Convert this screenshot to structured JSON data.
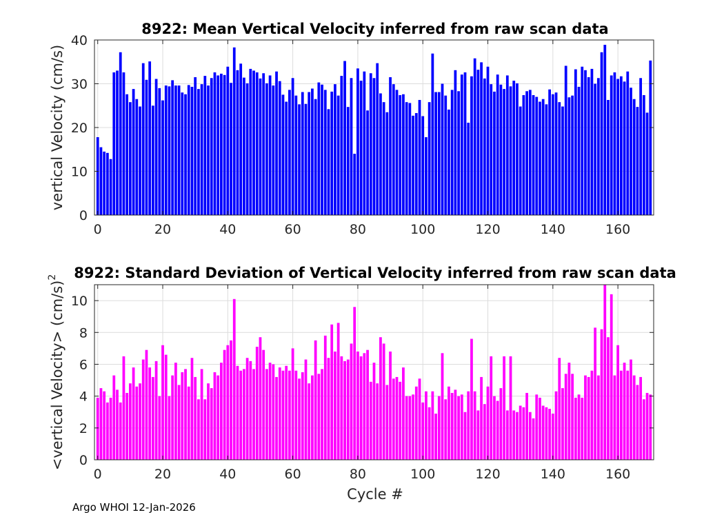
{
  "chart_data": [
    {
      "type": "bar",
      "title": "8922: Mean Vertical Velocity inferred from raw scan data",
      "xlabel": "",
      "ylabel": "vertical Velocity (cm/s)",
      "xlim": [
        -1,
        171
      ],
      "ylim": [
        0,
        40
      ],
      "xticks": [
        0,
        20,
        40,
        60,
        80,
        100,
        120,
        140,
        160
      ],
      "yticks": [
        0,
        10,
        20,
        30,
        40
      ],
      "bar_color": "#0000ff",
      "grid": true,
      "x_start": 0,
      "values": [
        17.8,
        15.5,
        14.5,
        14.2,
        12.8,
        32.6,
        33.0,
        37.2,
        32.6,
        27.6,
        25.8,
        28.8,
        26.5,
        24.8,
        34.7,
        30.9,
        35.1,
        25.0,
        31.1,
        29.0,
        26.2,
        29.6,
        29.4,
        30.8,
        29.6,
        29.6,
        28.0,
        27.6,
        29.7,
        29.3,
        31.5,
        28.8,
        29.9,
        31.8,
        29.6,
        31.3,
        32.6,
        31.9,
        32.3,
        32.0,
        33.9,
        30.2,
        38.3,
        33.1,
        34.6,
        31.4,
        30.1,
        33.4,
        33.0,
        32.6,
        31.2,
        32.4,
        30.1,
        31.9,
        29.6,
        32.8,
        30.6,
        27.5,
        25.9,
        28.6,
        31.3,
        27.3,
        25.3,
        28.1,
        25.4,
        28.1,
        28.9,
        26.5,
        30.3,
        29.8,
        28.6,
        24.2,
        28.2,
        29.9,
        27.3,
        31.8,
        35.2,
        24.7,
        31.3,
        14.0,
        33.5,
        30.7,
        32.8,
        23.9,
        32.4,
        31.3,
        34.7,
        27.8,
        25.8,
        23.5,
        31.5,
        29.9,
        28.6,
        27.4,
        27.6,
        25.8,
        25.6,
        22.7,
        23.3,
        26.3,
        22.6,
        17.8,
        25.8,
        36.9,
        28.1,
        28.1,
        30.0,
        27.3,
        24.1,
        28.6,
        33.1,
        28.3,
        32.1,
        32.6,
        21.1,
        31.7,
        35.8,
        33.2,
        34.9,
        31.2,
        33.9,
        29.9,
        28.2,
        32.1,
        29.8,
        28.8,
        31.9,
        29.4,
        30.7,
        30.1,
        24.8,
        27.4,
        28.3,
        28.6,
        27.4,
        27.0,
        25.9,
        26.5,
        25.3,
        28.7,
        27.6,
        28.0,
        25.8,
        24.8,
        34.1,
        26.9,
        27.3,
        33.3,
        29.3,
        33.9,
        33.1,
        31.5,
        33.4,
        30.0,
        31.3,
        37.2,
        38.9,
        26.3,
        31.9,
        32.6,
        31.1,
        31.7,
        30.5,
        32.8,
        29.1,
        26.5,
        24.7,
        31.3,
        27.4,
        23.4,
        35.3
      ]
    },
    {
      "type": "bar",
      "title": "8922: Standard Deviation of Vertical Velocity inferred from raw scan data",
      "xlabel": "Cycle #",
      "ylabel": "<vertical Velocity> (cm/s)",
      "ylabel_superscript": "2",
      "xlim": [
        -1,
        171
      ],
      "ylim": [
        0,
        11
      ],
      "xticks": [
        0,
        20,
        40,
        60,
        80,
        100,
        120,
        140,
        160
      ],
      "yticks": [
        0,
        2,
        4,
        6,
        8,
        10
      ],
      "bar_color": "#ff00ff",
      "grid": true,
      "x_start": 0,
      "values": [
        3.9,
        4.5,
        4.3,
        3.6,
        3.9,
        5.3,
        4.4,
        3.6,
        6.5,
        4.2,
        4.8,
        5.8,
        4.6,
        4.8,
        6.3,
        6.9,
        5.8,
        5.2,
        6.2,
        4.0,
        7.2,
        6.6,
        4.0,
        5.3,
        6.1,
        4.7,
        5.5,
        5.7,
        4.6,
        6.4,
        5.2,
        3.8,
        5.7,
        3.8,
        4.8,
        4.5,
        5.5,
        5.3,
        6.1,
        6.9,
        7.2,
        7.5,
        10.1,
        5.9,
        5.6,
        5.7,
        6.4,
        6.2,
        5.7,
        7.1,
        7.7,
        6.9,
        5.7,
        6.1,
        6.0,
        5.2,
        5.8,
        5.6,
        5.9,
        5.6,
        7.0,
        5.6,
        5.1,
        5.5,
        6.3,
        4.8,
        5.3,
        7.5,
        5.4,
        5.7,
        7.8,
        6.4,
        8.5,
        6.8,
        8.6,
        6.5,
        6.2,
        6.3,
        7.3,
        9.6,
        6.8,
        6.5,
        6.7,
        6.9,
        4.9,
        6.1,
        4.8,
        7.7,
        7.3,
        4.7,
        6.8,
        5.1,
        5.2,
        4.9,
        5.8,
        4.0,
        4.0,
        4.1,
        4.6,
        5.1,
        3.6,
        4.3,
        3.3,
        4.3,
        2.9,
        4.0,
        6.7,
        3.8,
        4.6,
        4.2,
        4.4,
        4.0,
        4.1,
        3.0,
        4.3,
        7.6,
        4.3,
        3.1,
        5.2,
        3.5,
        4.6,
        6.5,
        4.0,
        3.7,
        4.5,
        6.5,
        3.1,
        6.5,
        3.1,
        3.0,
        3.4,
        3.3,
        4.2,
        3.0,
        2.6,
        4.1,
        3.9,
        3.4,
        3.3,
        3.2,
        2.9,
        4.3,
        6.4,
        4.5,
        5.4,
        6.1,
        5.4,
        3.9,
        4.1,
        3.9,
        5.3,
        5.2,
        5.6,
        8.3,
        5.3,
        8.2,
        11.0,
        7.7,
        10.4,
        5.3,
        7.2,
        5.6,
        6.1,
        5.6,
        6.3,
        5.3,
        4.7,
        5.2,
        3.8,
        4.2,
        4.1
      ]
    }
  ],
  "footer": "Argo WHOI 12-Jan-2026"
}
